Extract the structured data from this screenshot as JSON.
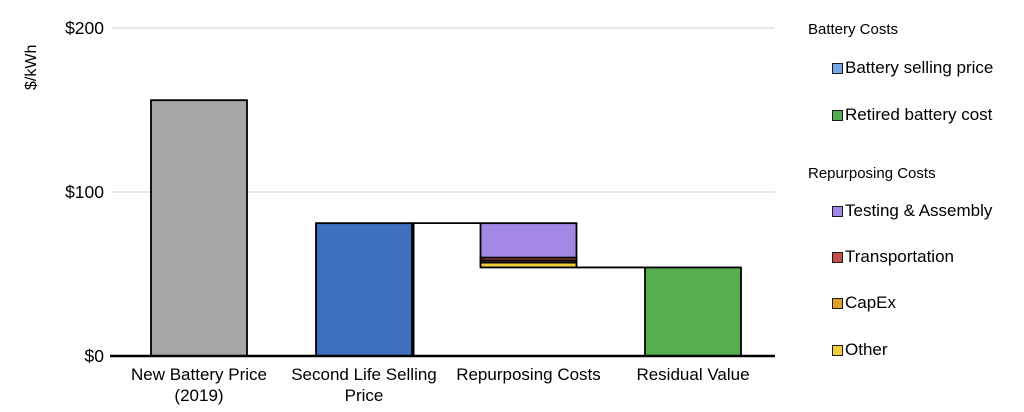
{
  "chart_data": {
    "type": "bar",
    "subtype": "waterfall",
    "title": "",
    "ylabel": "$/kWh",
    "xlabel": "",
    "ylim": [
      0,
      200
    ],
    "grid": "horizontal",
    "gridline_values": [
      100,
      200
    ],
    "y_ticks": [
      {
        "label": "$0",
        "value": 0
      },
      {
        "label": "$100",
        "value": 100
      },
      {
        "label": "$200",
        "value": 200
      }
    ],
    "categories": [
      "New Battery Price (2019)",
      "Second Life Selling Price",
      "Repurposing Costs",
      "Residual Value"
    ],
    "bars": [
      {
        "name": "new-battery-price",
        "label_lines": [
          "New Battery Price",
          "(2019)"
        ],
        "start": 0,
        "end": 156,
        "color": "#A6A6A6"
      },
      {
        "name": "second-life-selling-price",
        "label_lines": [
          "Second Life Selling",
          "Price"
        ],
        "start": 0,
        "end": 81,
        "color": "#3F6FBD"
      },
      {
        "name": "repurposing-costs",
        "label_lines": [
          "Repurposing Costs"
        ],
        "start": 54,
        "end": 81,
        "stacked": true,
        "segments": [
          {
            "name": "other",
            "label": "Other",
            "value": 3.0,
            "color": "#F2CE3B"
          },
          {
            "name": "capex",
            "label": "CapEx",
            "value": 1.3,
            "color": "#DFA229"
          },
          {
            "name": "transportation",
            "label": "Transportation",
            "value": 1.7,
            "color": "#BE4B48"
          },
          {
            "name": "testing-assembly",
            "label": "Testing & Assembly",
            "value": 21.0,
            "color": "#A287E5"
          }
        ]
      },
      {
        "name": "residual-value",
        "label_lines": [
          "Residual Value"
        ],
        "start": 0,
        "end": 54,
        "color": "#57AE4F"
      }
    ],
    "connector_color": "#000000",
    "bar_border_color": "#000000",
    "gridline_color": "#D9D9D9",
    "axis_color": "#000000"
  },
  "legend": {
    "position": "right",
    "groups": [
      {
        "header": "Battery Costs",
        "items": [
          {
            "label": "Battery selling price",
            "color": "#73A9DE"
          },
          {
            "label": "Retired battery cost",
            "color": "#55A952"
          }
        ]
      },
      {
        "header": "Repurposing Costs",
        "items": [
          {
            "label": "Testing & Assembly",
            "color": "#A287E5"
          },
          {
            "label": "Transportation",
            "color": "#C0504D"
          },
          {
            "label": "CapEx",
            "color": "#DFA229"
          },
          {
            "label": "Other",
            "color": "#F2CE3B"
          }
        ]
      }
    ]
  }
}
